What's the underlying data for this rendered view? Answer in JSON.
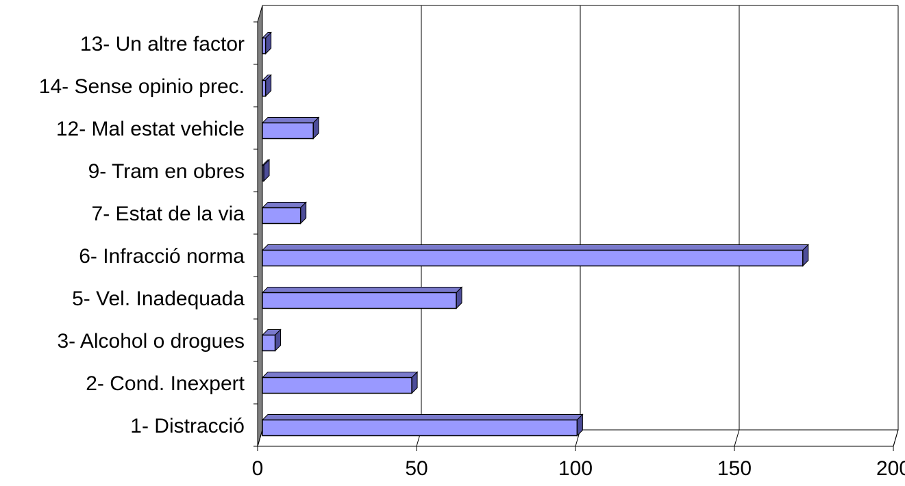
{
  "chart_data": {
    "type": "bar",
    "orientation": "horizontal",
    "style": "3d",
    "categories": [
      "1- Distracció",
      "2- Cond. Inexpert",
      "3- Alcohol o drogues",
      "5- Vel. Inadequada",
      "6- Infracció norma",
      "7- Estat de la via",
      "9- Tram en obres",
      "12- Mal estat vehicle",
      "14- Sense opinio prec.",
      "13- Un altre factor"
    ],
    "values": [
      99,
      47,
      4,
      61,
      170,
      12,
      0,
      16,
      1,
      1
    ],
    "xlim": [
      0,
      200
    ],
    "xticks": [
      "0",
      "50",
      "100",
      "150",
      "200"
    ],
    "title": "",
    "xlabel": "",
    "ylabel": "",
    "grid": true,
    "legend": "none",
    "colors": {
      "bar_front": "#9999ff",
      "bar_top": "#7a7acc",
      "bar_side": "#4d4d99",
      "wall": "#808080",
      "grid": "#000000"
    }
  }
}
